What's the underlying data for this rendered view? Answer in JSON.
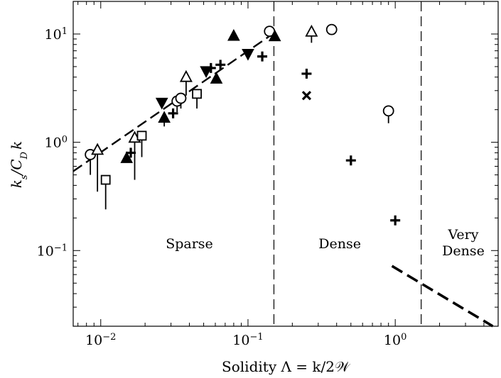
{
  "chart_data": {
    "type": "scatter",
    "title": "",
    "xlabel": "Solidity Λ = k/2𝒲",
    "ylabel": "k_s/C_D k",
    "xscale": "log",
    "yscale": "log",
    "xlim": [
      0.0065,
      5.0
    ],
    "ylim": [
      0.02,
      20
    ],
    "xticks": [
      {
        "value": 0.01,
        "base": "10",
        "exp": "−2"
      },
      {
        "value": 0.1,
        "base": "10",
        "exp": "−1"
      },
      {
        "value": 1.0,
        "base": "10",
        "exp": "0"
      }
    ],
    "yticks": [
      {
        "value": 0.1,
        "base": "10",
        "exp": "−1"
      },
      {
        "value": 1.0,
        "base": "10",
        "exp": "0"
      },
      {
        "value": 10.0,
        "base": "10",
        "exp": "1"
      }
    ],
    "regions": [
      {
        "label": "Sparse",
        "lines": [
          "Sparse"
        ],
        "x": 0.04,
        "y": 0.105
      },
      {
        "label": "Dense",
        "lines": [
          "Dense"
        ],
        "x": 0.42,
        "y": 0.105
      },
      {
        "label": "Very Dense",
        "lines": [
          "Very",
          "Dense"
        ],
        "x": 2.9,
        "y": 0.128
      }
    ],
    "region_boundaries": [
      0.15,
      1.5
    ],
    "fit_lines": [
      {
        "style": "dashed",
        "points": [
          [
            0.0065,
            0.54
          ],
          [
            0.15,
            10.2
          ]
        ]
      },
      {
        "style": "dashed-thick",
        "points": [
          [
            0.95,
            0.072
          ],
          [
            4.6,
            0.02
          ]
        ]
      }
    ],
    "series": [
      {
        "marker": "circle-open",
        "points": [
          {
            "x": 0.0085,
            "y": 0.77,
            "err_low": 0.5
          },
          {
            "x": 0.033,
            "y": 2.4,
            "err_low": 1.9
          },
          {
            "x": 0.035,
            "y": 2.55,
            "err_low": 2.05
          },
          {
            "x": 0.14,
            "y": 10.6
          },
          {
            "x": 0.37,
            "y": 11.0
          },
          {
            "x": 0.9,
            "y": 1.95,
            "err_low": 1.5
          }
        ]
      },
      {
        "marker": "triangle-up-open",
        "points": [
          {
            "x": 0.0095,
            "y": 0.85,
            "err_low": 0.35
          },
          {
            "x": 0.017,
            "y": 1.1,
            "err_low": 0.45
          },
          {
            "x": 0.038,
            "y": 4.0,
            "err_low": 2.7
          },
          {
            "x": 0.27,
            "y": 10.5,
            "err_low": 8.3
          }
        ]
      },
      {
        "marker": "square-open",
        "points": [
          {
            "x": 0.0108,
            "y": 0.45,
            "err_low": 0.24
          },
          {
            "x": 0.019,
            "y": 1.15,
            "err_low": 0.73
          },
          {
            "x": 0.045,
            "y": 2.8,
            "err_low": 2.05
          }
        ]
      },
      {
        "marker": "triangle-up-filled",
        "points": [
          {
            "x": 0.015,
            "y": 0.72
          },
          {
            "x": 0.027,
            "y": 1.7,
            "err_low": 1.4
          },
          {
            "x": 0.061,
            "y": 3.9
          },
          {
            "x": 0.08,
            "y": 9.7
          },
          {
            "x": 0.152,
            "y": 9.6
          }
        ]
      },
      {
        "marker": "triangle-down-filled",
        "points": [
          {
            "x": 0.026,
            "y": 2.3
          },
          {
            "x": 0.052,
            "y": 4.5
          },
          {
            "x": 0.1,
            "y": 6.5
          }
        ]
      },
      {
        "marker": "plus",
        "points": [
          {
            "x": 0.016,
            "y": 0.8
          },
          {
            "x": 0.031,
            "y": 1.85
          },
          {
            "x": 0.056,
            "y": 4.85
          },
          {
            "x": 0.065,
            "y": 5.2
          },
          {
            "x": 0.125,
            "y": 6.2
          },
          {
            "x": 0.25,
            "y": 4.3
          },
          {
            "x": 0.5,
            "y": 0.68
          },
          {
            "x": 1.0,
            "y": 0.19
          }
        ]
      },
      {
        "marker": "cross",
        "points": [
          {
            "x": 0.25,
            "y": 2.7
          }
        ]
      }
    ]
  }
}
